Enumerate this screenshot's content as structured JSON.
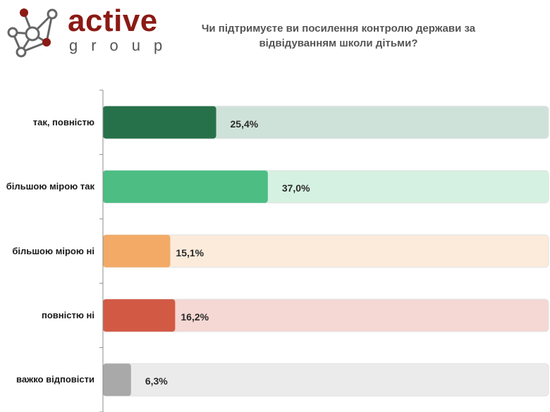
{
  "logo": {
    "word": "active",
    "sub": "group"
  },
  "chart_data": {
    "type": "bar",
    "orientation": "horizontal",
    "title": "Чи підтримуєте ви посилення контролю держави за відвідуванням школи дітьми?",
    "categories": [
      "так, повністю",
      "більшою мірою так",
      "більшою мірою ні",
      "повністю ні",
      "важко відповісти"
    ],
    "values": [
      25.4,
      37.0,
      15.1,
      16.2,
      6.3
    ],
    "value_labels": [
      "25,4%",
      "37,0%",
      "15,1%",
      "16,2%",
      "6,3%"
    ],
    "xlim": [
      0,
      100
    ],
    "bar_colors": [
      "#27714a",
      "#4dbd84",
      "#f2aa66",
      "#d25a45",
      "#a9a9a9"
    ],
    "track_colors": [
      "#cfe2da",
      "#d5f1e1",
      "#fcebdb",
      "#f5d7d3",
      "#ebebeb"
    ],
    "grid": false,
    "legend": "none"
  }
}
